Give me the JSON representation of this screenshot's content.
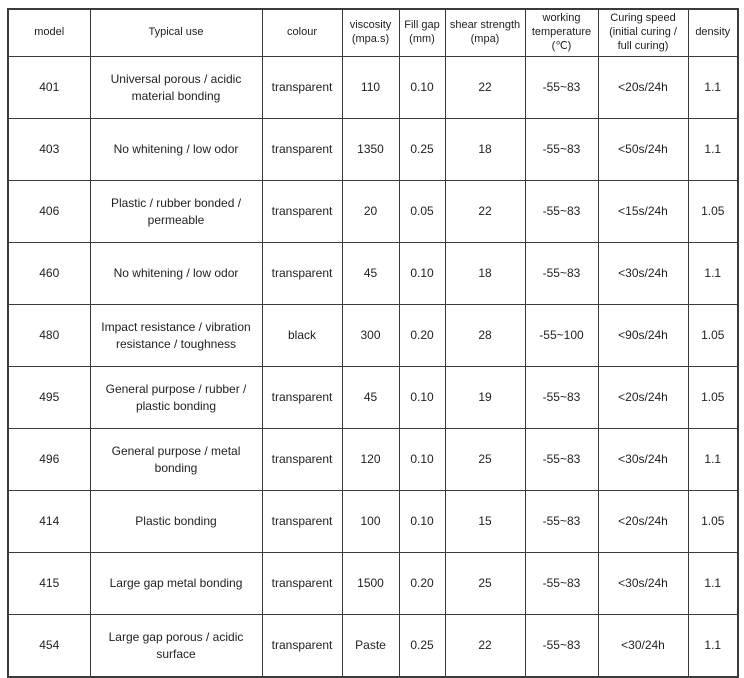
{
  "chart_data": {
    "type": "table",
    "description": "Adhesive product specification table",
    "grid": true,
    "colors": {
      "border": "#3b3b3b",
      "text": "#1f1f1f",
      "background": "#ffffff"
    },
    "column_keys": [
      "model",
      "typical_use",
      "colour",
      "viscosity_mpa_s",
      "fill_gap_mm",
      "shear_strength_mpa",
      "working_temperature_c",
      "curing_speed",
      "density"
    ],
    "columns": [
      "model",
      "Typical use",
      "colour",
      "viscosity\n(mpa.s)",
      "Fill gap\n(mm)",
      "shear strength\n(mpa)",
      "working\ntemperature\n(℃)",
      "Curing speed\n(initial curing /\nfull curing)",
      "density"
    ],
    "rows": [
      [
        "401",
        "Universal porous / acidic material bonding",
        "transparent",
        "110",
        "0.10",
        "22",
        "-55~83",
        "<20s/24h",
        "1.1"
      ],
      [
        "403",
        "No whitening / low odor",
        "transparent",
        "1350",
        "0.25",
        "18",
        "-55~83",
        "<50s/24h",
        "1.1"
      ],
      [
        "406",
        "Plastic / rubber bonded / permeable",
        "transparent",
        "20",
        "0.05",
        "22",
        "-55~83",
        "<15s/24h",
        "1.05"
      ],
      [
        "460",
        "No whitening / low odor",
        "transparent",
        "45",
        "0.10",
        "18",
        "-55~83",
        "<30s/24h",
        "1.1"
      ],
      [
        "480",
        "Impact resistance / vibration resistance / toughness",
        "black",
        "300",
        "0.20",
        "28",
        "-55~100",
        "<90s/24h",
        "1.05"
      ],
      [
        "495",
        "General purpose / rubber / plastic bonding",
        "transparent",
        "45",
        "0.10",
        "19",
        "-55~83",
        "<20s/24h",
        "1.05"
      ],
      [
        "496",
        "General purpose / metal bonding",
        "transparent",
        "120",
        "0.10",
        "25",
        "-55~83",
        "<30s/24h",
        "1.1"
      ],
      [
        "414",
        "Plastic bonding",
        "transparent",
        "100",
        "0.10",
        "15",
        "-55~83",
        "<20s/24h",
        "1.05"
      ],
      [
        "415",
        "Large gap metal bonding",
        "transparent",
        "1500",
        "0.20",
        "25",
        "-55~83",
        "<30s/24h",
        "1.1"
      ],
      [
        "454",
        "Large gap porous / acidic surface",
        "transparent",
        "Paste",
        "0.25",
        "22",
        "-55~83",
        "<30/24h",
        "1.1"
      ]
    ]
  }
}
